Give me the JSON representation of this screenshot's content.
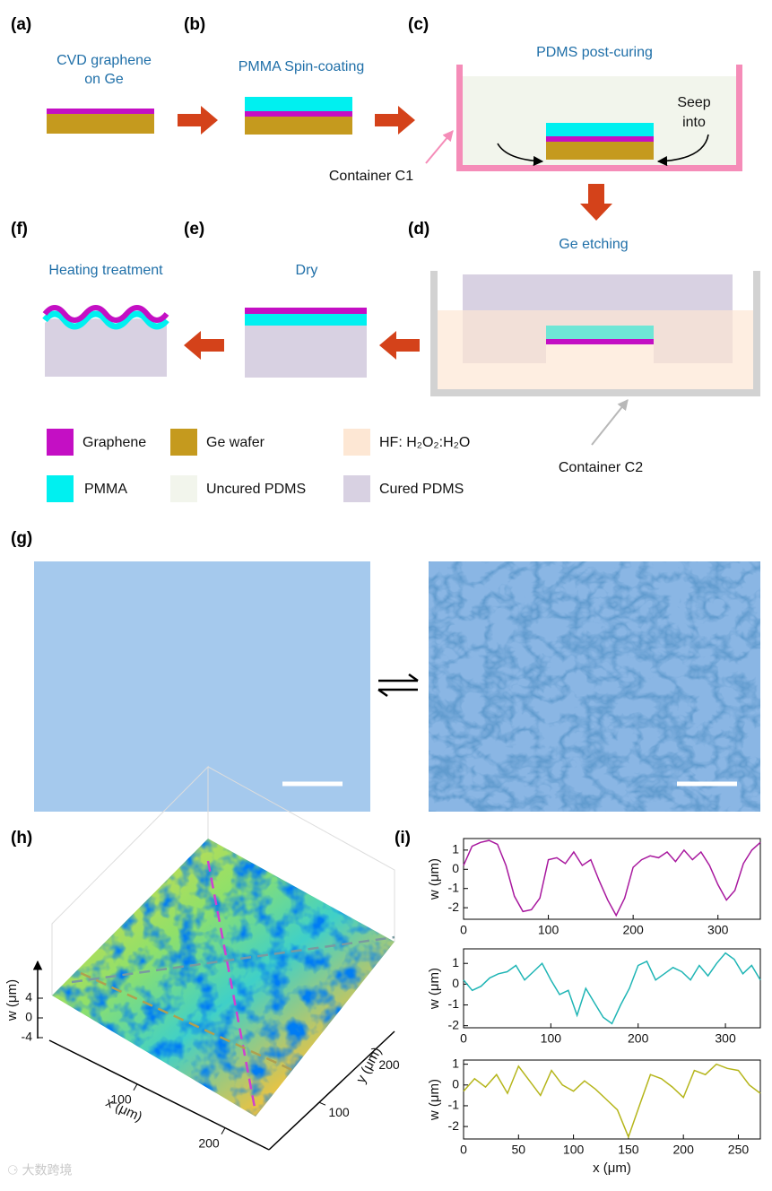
{
  "panels": {
    "a": "(a)",
    "b": "(b)",
    "c": "(c)",
    "d": "(d)",
    "e": "(e)",
    "f": "(f)",
    "g": "(g)",
    "h": "(h)",
    "i": "(i)"
  },
  "steps": {
    "a": [
      "CVD graphene",
      "on Ge"
    ],
    "b": "PMMA Spin-coating",
    "c": "PDMS post-curing",
    "c_note": [
      "Seep",
      "into"
    ],
    "c_container": "Container C1",
    "d": "Ge etching",
    "d_container": "Container C2",
    "e": "Dry",
    "f": "Heating treatment"
  },
  "legend": [
    {
      "label": "Graphene",
      "color": "#c40fc4"
    },
    {
      "label": "Ge wafer",
      "color": "#c59a1e"
    },
    {
      "label": "HF: H₂O₂:H₂O",
      "color": "#fde7d4"
    },
    {
      "label": "PMMA",
      "color": "#00f0f0"
    },
    {
      "label": "Uncured PDMS",
      "color": "#f2f5ec"
    },
    {
      "label": "Cured PDMS",
      "color": "#d8d1e2"
    }
  ],
  "surface": {
    "w_label": "w (μm)",
    "x_label": "x (μm)",
    "y_label": "y (μm)",
    "w_ticks": [
      4,
      0,
      -4
    ],
    "x_ticks": [
      100,
      200
    ],
    "y_ticks": [
      100,
      200
    ]
  },
  "chart_data": [
    {
      "type": "line",
      "y_label": "w (μm)",
      "color": "#a8189e",
      "xlim": [
        0,
        350
      ],
      "xticks": [
        0,
        100,
        200,
        300
      ],
      "ylim": [
        -2.6,
        1.6
      ],
      "yticks": [
        -2,
        -1,
        0,
        1
      ],
      "x": [
        0,
        10,
        20,
        30,
        40,
        50,
        60,
        70,
        80,
        90,
        100,
        110,
        120,
        130,
        140,
        150,
        160,
        170,
        180,
        190,
        200,
        210,
        220,
        230,
        240,
        250,
        260,
        270,
        280,
        290,
        300,
        310,
        320,
        330,
        340,
        350
      ],
      "values": [
        0.2,
        1.2,
        1.4,
        1.5,
        1.3,
        0.2,
        -1.4,
        -2.2,
        -2.1,
        -1.5,
        0.5,
        0.6,
        0.3,
        0.9,
        0.2,
        0.5,
        -0.6,
        -1.6,
        -2.4,
        -1.5,
        0.1,
        0.5,
        0.7,
        0.6,
        0.9,
        0.4,
        1.0,
        0.5,
        0.9,
        0.2,
        -0.8,
        -1.6,
        -1.1,
        0.3,
        1.0,
        1.4
      ]
    },
    {
      "type": "line",
      "y_label": "w (μm)",
      "color": "#1fb5b5",
      "xlim": [
        0,
        340
      ],
      "xticks": [
        0,
        100,
        200,
        300
      ],
      "ylim": [
        -2.1,
        1.7
      ],
      "yticks": [
        -2,
        -1,
        0,
        1
      ],
      "x": [
        0,
        10,
        20,
        30,
        40,
        50,
        60,
        70,
        80,
        90,
        100,
        110,
        120,
        130,
        140,
        150,
        160,
        170,
        180,
        190,
        200,
        210,
        220,
        230,
        240,
        250,
        260,
        270,
        280,
        290,
        300,
        310,
        320,
        330,
        340
      ],
      "values": [
        0.2,
        -0.3,
        -0.1,
        0.3,
        0.5,
        0.6,
        0.9,
        0.2,
        0.6,
        1.0,
        0.2,
        -0.5,
        -0.3,
        -1.5,
        -0.2,
        -0.9,
        -1.6,
        -1.9,
        -1.0,
        -0.2,
        0.9,
        1.1,
        0.2,
        0.5,
        0.8,
        0.6,
        0.2,
        0.9,
        0.4,
        1.0,
        1.5,
        1.2,
        0.5,
        0.9,
        0.2
      ]
    },
    {
      "type": "line",
      "y_label": "w (μm)",
      "x_label": "x (μm)",
      "color": "#b5b51a",
      "xlim": [
        0,
        270
      ],
      "xticks": [
        0,
        50,
        100,
        150,
        200,
        250
      ],
      "ylim": [
        -2.6,
        1.2
      ],
      "yticks": [
        -2,
        -1,
        0,
        1
      ],
      "x": [
        0,
        10,
        20,
        30,
        40,
        50,
        60,
        70,
        80,
        90,
        100,
        110,
        120,
        130,
        140,
        150,
        160,
        170,
        180,
        190,
        200,
        210,
        220,
        230,
        240,
        250,
        260,
        270
      ],
      "values": [
        -0.3,
        0.3,
        -0.1,
        0.5,
        -0.4,
        0.9,
        0.2,
        -0.5,
        0.7,
        0.0,
        -0.3,
        0.2,
        -0.2,
        -0.7,
        -1.2,
        -2.5,
        -1.0,
        0.5,
        0.3,
        -0.1,
        -0.6,
        0.7,
        0.5,
        1.0,
        0.8,
        0.7,
        0.0,
        -0.4
      ]
    }
  ]
}
